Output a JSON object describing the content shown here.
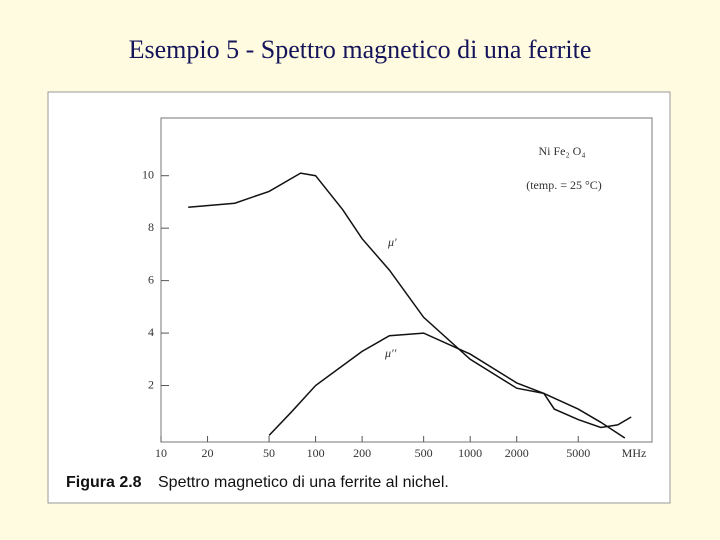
{
  "chart_data": {
    "type": "line",
    "title": "Esempio 5 - Spettro magnetico di una ferrite",
    "caption_label": "Figura 2.8",
    "caption": "Spettro magnetico di una ferrite al nichel.",
    "annotations": [
      "Ni Fe₂ O₄",
      "(temp. = 25 °C)"
    ],
    "x_label": "MHz",
    "log_x": true,
    "xlim": [
      10,
      15000
    ],
    "xticks": [
      10,
      20,
      50,
      100,
      200,
      500,
      1000,
      2000,
      5000
    ],
    "ylim": [
      0,
      12.2
    ],
    "yticks": [
      2,
      4,
      6,
      8,
      10
    ],
    "series": [
      {
        "name": "μ'",
        "color": "#111111",
        "x": [
          15,
          30,
          50,
          80,
          100,
          150,
          200,
          300,
          500,
          1000,
          2000,
          3000,
          3500,
          5000,
          7000,
          9000,
          11000
        ],
        "values": [
          8.8,
          8.95,
          9.4,
          10.1,
          10.0,
          8.7,
          7.6,
          6.4,
          4.6,
          3.0,
          1.9,
          1.7,
          1.1,
          0.7,
          0.4,
          0.5,
          0.8
        ]
      },
      {
        "name": "μ''",
        "color": "#111111",
        "x": [
          50,
          70,
          100,
          200,
          300,
          500,
          1000,
          2000,
          3000,
          5000,
          7000,
          10000
        ],
        "values": [
          0.1,
          1.0,
          2.0,
          3.3,
          3.9,
          4.0,
          3.2,
          2.1,
          1.7,
          1.1,
          0.6,
          0.0
        ]
      }
    ]
  }
}
